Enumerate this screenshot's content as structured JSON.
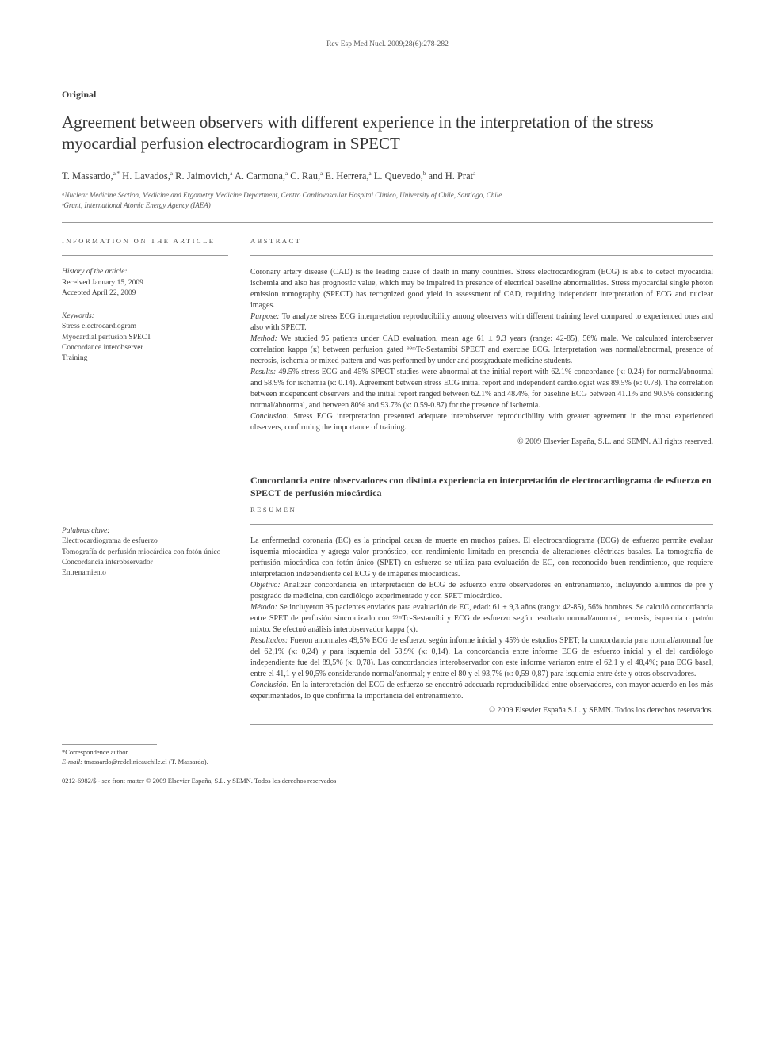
{
  "journal_ref": "Rev Esp Med Nucl. 2009;28(6):278-282",
  "section_type": "Original",
  "title": "Agreement between observers with different experience in the interpretation of the stress myocardial perfusion electrocardiogram in SPECT",
  "authors_html": "T. Massardo,<sup>a,*</sup> H. Lavados,<sup>a</sup> R. Jaimovich,<sup>a</sup> A. Carmona,<sup>a</sup> C. Rau,<sup>a</sup> E. Herrera,<sup>a</sup> L. Quevedo,<sup>b</sup> and H. Prat<sup>a</sup>",
  "affiliations": [
    "ᵃNuclear Medicine Section, Medicine and Ergometry Medicine Department, Centro Cardiovascular Hospital Clínico, University of Chile, Santiago, Chile",
    "ᵇGrant, International Atomic Energy Agency (IAEA)"
  ],
  "info_heading": "INFORMATION ON THE ARTICLE",
  "history": {
    "heading": "History of the article:",
    "received": "Received January 15, 2009",
    "accepted": "Accepted April 22, 2009"
  },
  "keywords": {
    "heading": "Keywords:",
    "items": [
      "Stress electrocardiogram",
      "Myocardial perfusion SPECT",
      "Concordance interobserver",
      "Training"
    ]
  },
  "abstract": {
    "heading": "ABSTRACT",
    "intro": "Coronary artery disease (CAD) is the leading cause of death in many countries. Stress electrocardiogram (ECG) is able to detect myocardial ischemia and also has prognostic value, which may be impaired in presence of electrical baseline abnormalities. Stress myocardial single photon emission tomography (SPECT) has recognized good yield in assessment of CAD, requiring independent interpretation of ECG and nuclear images.",
    "purpose_label": "Purpose:",
    "purpose": " To analyze stress ECG interpretation reproducibility among observers with different training level compared to experienced ones and also with SPECT.",
    "method_label": "Method:",
    "method": " We studied 95 patients under CAD evaluation, mean age 61 ± 9.3 years (range: 42-85), 56% male. We calculated interobserver correlation kappa (κ) between perfusion gated ⁹⁹ᵐTc-Sestamibi SPECT and exercise ECG. Interpretation was normal/abnormal, presence of necrosis, ischemia or mixed pattern and was performed by under and postgraduate medicine students.",
    "results_label": "Results:",
    "results": " 49.5% stress ECG and 45% SPECT studies were abnormal at the initial report with 62.1% concordance (κ: 0.24) for normal/abnormal and 58.9% for ischemia (κ: 0.14). Agreement between stress ECG initial report and independent cardiologist was 89.5% (κ: 0.78). The correlation between independent observers and the initial report ranged between 62.1% and 48.4%, for baseline ECG between 41.1% and 90.5% considering normal/abnormal, and between 80% and 93.7% (κ: 0.59-0.87) for the presence of ischemia.",
    "conclusion_label": "Conclusion:",
    "conclusion": " Stress ECG interpretation presented adequate interobserver reproducibility with greater agreement in the most experienced observers, confirming the importance of training.",
    "copyright": "© 2009 Elsevier España, S.L. and SEMN. All rights reserved."
  },
  "es": {
    "title": "Concordancia entre observadores con distinta experiencia en interpretación de electrocardiograma de esfuerzo en SPECT de perfusión miocárdica",
    "resumen_heading": "RESUMEN",
    "palabras_heading": "Palabras clave:",
    "palabras": [
      "Electrocardiograma de esfuerzo",
      "Tomografía de perfusión miocárdica con fotón único",
      "Concordancia interobservador",
      "Entrenamiento"
    ],
    "intro": "La enfermedad coronaria (EC) es la principal causa de muerte en muchos países. El electrocardiograma (ECG) de esfuerzo permite evaluar isquemia miocárdica y agrega valor pronóstico, con rendimiento limitado en presencia de alteraciones eléctricas basales. La tomografía de perfusión miocárdica con fotón único (SPET) en esfuerzo se utiliza para evaluación de EC, con reconocido buen rendimiento, que requiere interpretación independiente del ECG y de imágenes miocárdicas.",
    "objetivo_label": "Objetivo:",
    "objetivo": " Analizar concordancia en interpretación de ECG de esfuerzo entre observadores en entrenamiento, incluyendo alumnos de pre y postgrado de medicina, con cardiólogo experimentado y con SPET miocárdico.",
    "metodo_label": "Método:",
    "metodo": " Se incluyeron 95 pacientes enviados para evaluación de EC, edad: 61 ± 9,3 años (rango: 42-85), 56% hombres. Se calculó concordancia entre SPET de perfusión sincronizado con ⁹⁹ᵐTc-Sestamibi y ECG de esfuerzo según resultado normal/anormal, necrosis, isquemia o patrón mixto. Se efectuó análisis interobservador kappa (κ).",
    "resultados_label": "Resultados:",
    "resultados": " Fueron anormales 49,5% ECG de esfuerzo según informe inicial y 45% de estudios SPET; la concordancia para normal/anormal fue del 62,1% (κ: 0,24) y para isquemia del 58,9% (κ: 0,14). La concordancia entre informe ECG de esfuerzo inicial y el del cardiólogo independiente fue del 89,5% (κ: 0,78). Las concordancias interobservador con este informe variaron entre el 62,1 y el 48,4%; para ECG basal, entre el 41,1 y el 90,5% considerando normal/anormal; y entre el 80 y el 93,7% (κ: 0,59-0,87) para isquemia entre éste y otros observadores.",
    "conclusion_label": "Conclusión:",
    "conclusion": " En la interpretación del ECG de esfuerzo se encontró adecuada reproducibilidad entre observadores, con mayor acuerdo en los más experimentados, lo que confirma la importancia del entrenamiento.",
    "copyright": "© 2009 Elsevier España S.L. y SEMN. Todos los derechos reservados."
  },
  "footnotes": {
    "corr": "*Correspondence author.",
    "email_label": "E-mail:",
    "email": " tmassardo@redclinicauchile.cl (T. Massardo)."
  },
  "issn": "0212-6982/$ - see front matter © 2009 Elsevier España, S.L. y SEMN. Todos los derechos reservados"
}
